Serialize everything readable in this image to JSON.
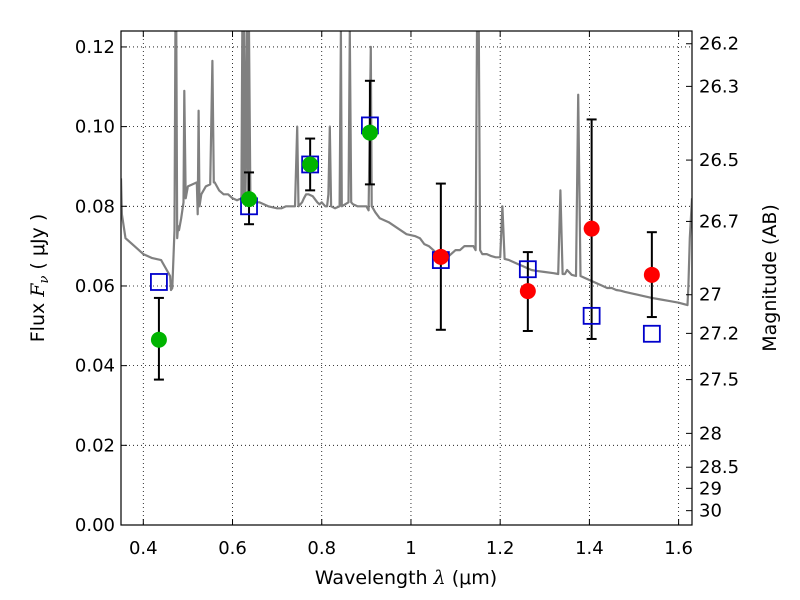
{
  "chart_data": {
    "type": "scatter",
    "xlabel": {
      "prefix": "Wavelength  ",
      "symbol": "λ",
      "unit": " (μm)"
    },
    "ylabel": {
      "prefix": "Flux  ",
      "symbol": "F",
      "sub": "ν",
      "unit": "  ( μJy )"
    },
    "ylabel_right": "Magnitude (AB)",
    "xlim": [
      0.35,
      1.63
    ],
    "ylim": [
      0.0,
      0.124
    ],
    "x_ticks": [
      0.4,
      0.6,
      0.8,
      1.0,
      1.2,
      1.4,
      1.6
    ],
    "x_tick_labels": [
      "0.4",
      "0.6",
      "0.8",
      "1",
      "1.2",
      "1.4",
      "1.6"
    ],
    "y_ticks": [
      0.0,
      0.02,
      0.04,
      0.06,
      0.08,
      0.1,
      0.12
    ],
    "y_tick_labels": [
      "0.00",
      "0.02",
      "0.04",
      "0.06",
      "0.08",
      "0.10",
      "0.12"
    ],
    "right_ticks": [
      {
        "label": "26.2",
        "flux": 0.1208
      },
      {
        "label": "26.3",
        "flux": 0.1101
      },
      {
        "label": "26.5",
        "flux": 0.0916
      },
      {
        "label": "26.7",
        "flux": 0.0762
      },
      {
        "label": "27",
        "flux": 0.0578
      },
      {
        "label": "27.2",
        "flux": 0.0481
      },
      {
        "label": "27.5",
        "flux": 0.0365
      },
      {
        "label": "28",
        "flux": 0.023
      },
      {
        "label": "28.5",
        "flux": 0.0145
      },
      {
        "label": "29",
        "flux": 0.0092
      },
      {
        "label": "30",
        "flux": 0.0036
      }
    ],
    "grid": true,
    "series": [
      {
        "kind": "model_spectrum",
        "color": "#808080",
        "points": [
          [
            0.35,
            0.087
          ],
          [
            0.352,
            0.078
          ],
          [
            0.36,
            0.072
          ],
          [
            0.38,
            0.07
          ],
          [
            0.4,
            0.068
          ],
          [
            0.42,
            0.067
          ],
          [
            0.44,
            0.0665
          ],
          [
            0.45,
            0.0645
          ],
          [
            0.46,
            0.0625
          ],
          [
            0.462,
            0.059
          ],
          [
            0.465,
            0.0595
          ],
          [
            0.47,
            0.074
          ],
          [
            0.472,
            0.124
          ],
          [
            0.474,
            0.124
          ],
          [
            0.476,
            0.072
          ],
          [
            0.478,
            0.075
          ],
          [
            0.48,
            0.074
          ],
          [
            0.485,
            0.077
          ],
          [
            0.49,
            0.081
          ],
          [
            0.492,
            0.109
          ],
          [
            0.495,
            0.082
          ],
          [
            0.5,
            0.085
          ],
          [
            0.51,
            0.0855
          ],
          [
            0.52,
            0.086
          ],
          [
            0.522,
            0.078
          ],
          [
            0.524,
            0.104
          ],
          [
            0.526,
            0.08
          ],
          [
            0.53,
            0.083
          ],
          [
            0.54,
            0.085
          ],
          [
            0.55,
            0.0855
          ],
          [
            0.555,
            0.1165
          ],
          [
            0.558,
            0.086
          ],
          [
            0.56,
            0.086
          ],
          [
            0.57,
            0.084
          ],
          [
            0.58,
            0.083
          ],
          [
            0.59,
            0.083
          ],
          [
            0.6,
            0.082
          ],
          [
            0.61,
            0.0815
          ],
          [
            0.62,
            0.082
          ],
          [
            0.622,
            0.124
          ],
          [
            0.624,
            0.083
          ],
          [
            0.626,
            0.124
          ],
          [
            0.628,
            0.082
          ],
          [
            0.632,
            0.124
          ],
          [
            0.634,
            0.082
          ],
          [
            0.637,
            0.124
          ],
          [
            0.64,
            0.0815
          ],
          [
            0.65,
            0.081
          ],
          [
            0.66,
            0.081
          ],
          [
            0.67,
            0.0805
          ],
          [
            0.68,
            0.08
          ],
          [
            0.7,
            0.0795
          ],
          [
            0.71,
            0.0795
          ],
          [
            0.72,
            0.08
          ],
          [
            0.73,
            0.08
          ],
          [
            0.74,
            0.08
          ],
          [
            0.745,
            0.1
          ],
          [
            0.748,
            0.08
          ],
          [
            0.752,
            0.0805
          ],
          [
            0.756,
            0.081
          ],
          [
            0.76,
            0.082
          ],
          [
            0.765,
            0.083
          ],
          [
            0.77,
            0.083
          ],
          [
            0.78,
            0.0825
          ],
          [
            0.79,
            0.081
          ],
          [
            0.795,
            0.0805
          ],
          [
            0.8,
            0.081
          ],
          [
            0.804,
            0.0805
          ],
          [
            0.808,
            0.08
          ],
          [
            0.812,
            0.08
          ],
          [
            0.815,
            0.083
          ],
          [
            0.818,
            0.1
          ],
          [
            0.821,
            0.08
          ],
          [
            0.83,
            0.0795
          ],
          [
            0.84,
            0.08
          ],
          [
            0.843,
            0.124
          ],
          [
            0.845,
            0.08
          ],
          [
            0.86,
            0.081
          ],
          [
            0.863,
            0.124
          ],
          [
            0.866,
            0.081
          ],
          [
            0.87,
            0.0805
          ],
          [
            0.88,
            0.08
          ],
          [
            0.89,
            0.08
          ],
          [
            0.9,
            0.08
          ],
          [
            0.905,
            0.079
          ],
          [
            0.91,
            0.12
          ],
          [
            0.912,
            0.08
          ],
          [
            0.915,
            0.0795
          ],
          [
            0.92,
            0.0785
          ],
          [
            0.93,
            0.077
          ],
          [
            0.95,
            0.076
          ],
          [
            0.97,
            0.0745
          ],
          [
            0.99,
            0.073
          ],
          [
            1.01,
            0.0725
          ],
          [
            1.02,
            0.072
          ],
          [
            1.03,
            0.0705
          ],
          [
            1.04,
            0.07
          ],
          [
            1.05,
            0.069
          ],
          [
            1.06,
            0.068
          ],
          [
            1.07,
            0.0675
          ],
          [
            1.08,
            0.067
          ],
          [
            1.09,
            0.068
          ],
          [
            1.1,
            0.069
          ],
          [
            1.11,
            0.069
          ],
          [
            1.12,
            0.07
          ],
          [
            1.13,
            0.07
          ],
          [
            1.14,
            0.07
          ],
          [
            1.145,
            0.069
          ],
          [
            1.148,
            0.124
          ],
          [
            1.152,
            0.124
          ],
          [
            1.155,
            0.069
          ],
          [
            1.16,
            0.068
          ],
          [
            1.17,
            0.068
          ],
          [
            1.18,
            0.0675
          ],
          [
            1.19,
            0.0672
          ],
          [
            1.2,
            0.0672
          ],
          [
            1.205,
            0.08
          ],
          [
            1.21,
            0.0668
          ],
          [
            1.22,
            0.0665
          ],
          [
            1.23,
            0.066
          ],
          [
            1.24,
            0.0655
          ],
          [
            1.25,
            0.065
          ],
          [
            1.26,
            0.0645
          ],
          [
            1.27,
            0.064
          ],
          [
            1.28,
            0.0638
          ],
          [
            1.3,
            0.0635
          ],
          [
            1.32,
            0.0632
          ],
          [
            1.33,
            0.063
          ],
          [
            1.335,
            0.084
          ],
          [
            1.34,
            0.063
          ],
          [
            1.345,
            0.063
          ],
          [
            1.35,
            0.064
          ],
          [
            1.36,
            0.0628
          ],
          [
            1.37,
            0.0625
          ],
          [
            1.375,
            0.108
          ],
          [
            1.38,
            0.0625
          ],
          [
            1.39,
            0.062
          ],
          [
            1.4,
            0.0615
          ],
          [
            1.41,
            0.061
          ],
          [
            1.42,
            0.0605
          ],
          [
            1.43,
            0.06
          ],
          [
            1.44,
            0.0595
          ],
          [
            1.45,
            0.0595
          ],
          [
            1.46,
            0.059
          ],
          [
            1.47,
            0.0588
          ],
          [
            1.48,
            0.0585
          ],
          [
            1.5,
            0.058
          ],
          [
            1.52,
            0.0575
          ],
          [
            1.54,
            0.057
          ],
          [
            1.56,
            0.0566
          ],
          [
            1.58,
            0.0562
          ],
          [
            1.6,
            0.0558
          ],
          [
            1.62,
            0.0552
          ],
          [
            1.622,
            0.06
          ],
          [
            1.625,
            0.072
          ],
          [
            1.63,
            0.082
          ]
        ]
      },
      {
        "kind": "model_boxes",
        "marker": "open-square",
        "color": "#0000cc",
        "points": [
          {
            "x": 0.435,
            "y": 0.061
          },
          {
            "x": 0.637,
            "y": 0.08
          },
          {
            "x": 0.774,
            "y": 0.0905
          },
          {
            "x": 0.908,
            "y": 0.1003
          },
          {
            "x": 1.067,
            "y": 0.0665
          },
          {
            "x": 1.262,
            "y": 0.0642
          },
          {
            "x": 1.405,
            "y": 0.0525
          },
          {
            "x": 1.54,
            "y": 0.048
          }
        ]
      },
      {
        "kind": "observed_optical",
        "marker": "filled-circle",
        "color": "#00b400",
        "points": [
          {
            "x": 0.435,
            "y": 0.0465,
            "err_lo": 0.0365,
            "err_hi": 0.057
          },
          {
            "x": 0.637,
            "y": 0.0818,
            "err_lo": 0.0755,
            "err_hi": 0.0885
          },
          {
            "x": 0.774,
            "y": 0.0905,
            "err_lo": 0.084,
            "err_hi": 0.097
          },
          {
            "x": 0.908,
            "y": 0.0985,
            "err_lo": 0.0855,
            "err_hi": 0.1115
          }
        ]
      },
      {
        "kind": "observed_nir",
        "marker": "filled-circle",
        "color": "#ff0000",
        "points": [
          {
            "x": 1.067,
            "y": 0.0673,
            "err_lo": 0.049,
            "err_hi": 0.0857
          },
          {
            "x": 1.262,
            "y": 0.0587,
            "err_lo": 0.0487,
            "err_hi": 0.0685
          },
          {
            "x": 1.405,
            "y": 0.0744,
            "err_lo": 0.0467,
            "err_hi": 0.1018
          },
          {
            "x": 1.54,
            "y": 0.0628,
            "err_lo": 0.0522,
            "err_hi": 0.0735
          }
        ]
      }
    ]
  }
}
